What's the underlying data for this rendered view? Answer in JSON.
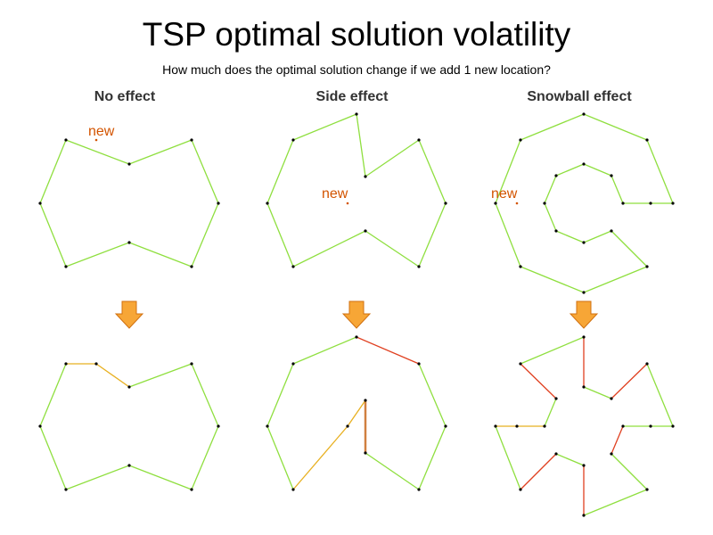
{
  "title": "TSP optimal solution volatility",
  "subtitle": "How much does the optimal solution change if we add 1 new location?",
  "new_label": "new",
  "colors": {
    "unchanged": "#8fdf3f",
    "new_edge": "#e8b020",
    "changed": "#e04020",
    "moved": "#d08040",
    "arrow": "#f7a636",
    "arrow_border": "#d07010",
    "new_text": "#d35400"
  },
  "panels": [
    {
      "label": "No effect",
      "before": {
        "tour": [
          [
            74,
            157
          ],
          [
            145,
            184
          ],
          [
            215,
            157
          ],
          [
            245,
            228
          ],
          [
            215,
            299
          ],
          [
            145,
            272
          ],
          [
            74,
            299
          ],
          [
            45,
            228
          ]
        ],
        "new": [
          108,
          157
        ]
      },
      "after": {
        "edges": [
          [
            [
              74,
              408
            ],
            [
              108,
              408
            ],
            "new_edge"
          ],
          [
            [
              108,
              408
            ],
            [
              145,
              434
            ],
            "new_edge"
          ],
          [
            [
              145,
              434
            ],
            [
              215,
              408
            ],
            "unchanged"
          ],
          [
            [
              215,
              408
            ],
            [
              245,
              478
            ],
            "unchanged"
          ],
          [
            [
              245,
              478
            ],
            [
              215,
              549
            ],
            "unchanged"
          ],
          [
            [
              215,
              549
            ],
            [
              145,
              522
            ],
            "unchanged"
          ],
          [
            [
              145,
              522
            ],
            [
              74,
              549
            ],
            "unchanged"
          ],
          [
            [
              74,
              549
            ],
            [
              45,
              478
            ],
            "unchanged"
          ],
          [
            [
              45,
              478
            ],
            [
              74,
              408
            ],
            "unchanged"
          ]
        ]
      }
    },
    {
      "label": "Side effect",
      "before": {
        "tour": [
          [
            329,
            157
          ],
          [
            400,
            128
          ],
          [
            410,
            198
          ],
          [
            470,
            157
          ],
          [
            500,
            228
          ],
          [
            470,
            299
          ],
          [
            410,
            259
          ],
          [
            329,
            299
          ],
          [
            300,
            228
          ]
        ],
        "new": [
          390,
          228
        ]
      },
      "after": {
        "edges": [
          [
            [
              329,
              408
            ],
            [
              400,
              378
            ],
            "unchanged"
          ],
          [
            [
              400,
              378
            ],
            [
              470,
              408
            ],
            "changed"
          ],
          [
            [
              470,
              408
            ],
            [
              500,
              478
            ],
            "unchanged"
          ],
          [
            [
              500,
              478
            ],
            [
              470,
              549
            ],
            "unchanged"
          ],
          [
            [
              470,
              549
            ],
            [
              410,
              508
            ],
            "unchanged"
          ],
          [
            [
              410,
              508
            ],
            [
              410,
              449
            ],
            "moved"
          ],
          [
            [
              410,
              449
            ],
            [
              390,
              478
            ],
            "new_edge"
          ],
          [
            [
              390,
              478
            ],
            [
              329,
              549
            ],
            "new_edge"
          ],
          [
            [
              329,
              549
            ],
            [
              300,
              478
            ],
            "unchanged"
          ],
          [
            [
              300,
              478
            ],
            [
              329,
              408
            ],
            "unchanged"
          ]
        ]
      }
    },
    {
      "label": "Snowball effect",
      "before": {
        "tour": [
          [
            655,
            128
          ],
          [
            726,
            157
          ],
          [
            755,
            228
          ],
          [
            730,
            228
          ],
          [
            699,
            228
          ],
          [
            686,
            197
          ],
          [
            655,
            184
          ],
          [
            624,
            197
          ],
          [
            611,
            228
          ],
          [
            624,
            259
          ],
          [
            655,
            272
          ],
          [
            686,
            259
          ],
          [
            726,
            299
          ],
          [
            655,
            328
          ],
          [
            584,
            299
          ],
          [
            556,
            228
          ],
          [
            584,
            157
          ]
        ],
        "new": [
          580,
          228
        ]
      },
      "after": {
        "edges": [
          [
            [
              655,
              378
            ],
            [
              584,
              408
            ],
            "unchanged"
          ],
          [
            [
              584,
              408
            ],
            [
              624,
              447
            ],
            "changed"
          ],
          [
            [
              624,
              447
            ],
            [
              611,
              478
            ],
            "unchanged"
          ],
          [
            [
              611,
              478
            ],
            [
              580,
              478
            ],
            "new_edge"
          ],
          [
            [
              580,
              478
            ],
            [
              556,
              478
            ],
            "new_edge"
          ],
          [
            [
              556,
              478
            ],
            [
              584,
              549
            ],
            "unchanged"
          ],
          [
            [
              584,
              549
            ],
            [
              624,
              509
            ],
            "changed"
          ],
          [
            [
              624,
              509
            ],
            [
              655,
              522
            ],
            "unchanged"
          ],
          [
            [
              655,
              522
            ],
            [
              655,
              578
            ],
            "changed"
          ],
          [
            [
              655,
              578
            ],
            [
              726,
              549
            ],
            "unchanged"
          ],
          [
            [
              726,
              549
            ],
            [
              686,
              509
            ],
            "unchanged"
          ],
          [
            [
              686,
              509
            ],
            [
              699,
              478
            ],
            "changed"
          ],
          [
            [
              699,
              478
            ],
            [
              730,
              478
            ],
            "unchanged"
          ],
          [
            [
              730,
              478
            ],
            [
              755,
              478
            ],
            "unchanged"
          ],
          [
            [
              755,
              478
            ],
            [
              726,
              408
            ],
            "unchanged"
          ],
          [
            [
              726,
              408
            ],
            [
              686,
              447
            ],
            "changed"
          ],
          [
            [
              686,
              447
            ],
            [
              655,
              434
            ],
            "unchanged"
          ],
          [
            [
              655,
              434
            ],
            [
              655,
              378
            ],
            "changed"
          ]
        ]
      }
    }
  ]
}
